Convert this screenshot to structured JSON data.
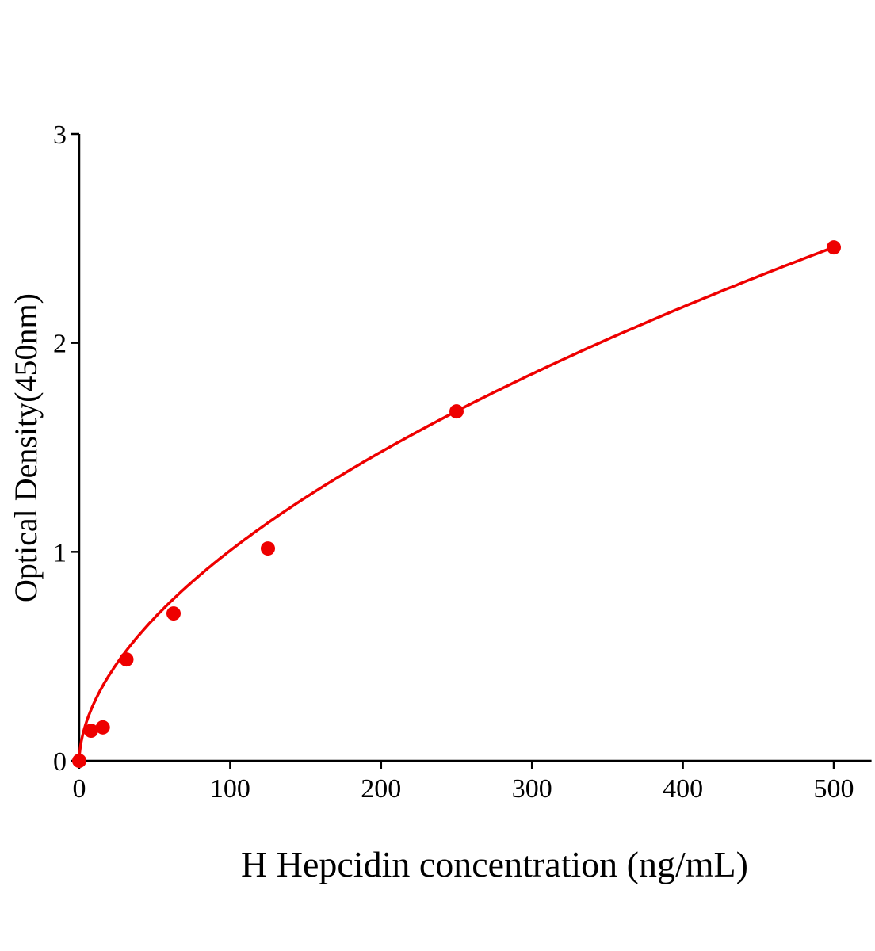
{
  "chart_data": {
    "type": "scatter",
    "title": "",
    "xlabel": "H Hepcidin concentration (ng/mL)",
    "ylabel": "Optical Density(450nm)",
    "xlim": [
      0,
      525
    ],
    "ylim": [
      0,
      3
    ],
    "xticks": [
      0,
      100,
      200,
      300,
      400,
      500
    ],
    "yticks": [
      0,
      1,
      2,
      3
    ],
    "grid": false,
    "color": "#ee0000",
    "points": {
      "x": [
        0,
        7.8,
        15.6,
        31.25,
        62.5,
        125,
        250,
        500
      ],
      "y": [
        0.0,
        0.144,
        0.16,
        0.485,
        0.705,
        1.016,
        1.672,
        2.457
      ]
    },
    "fit_curve": {
      "model": "power",
      "a": 0.0781,
      "b": 0.555
    }
  }
}
